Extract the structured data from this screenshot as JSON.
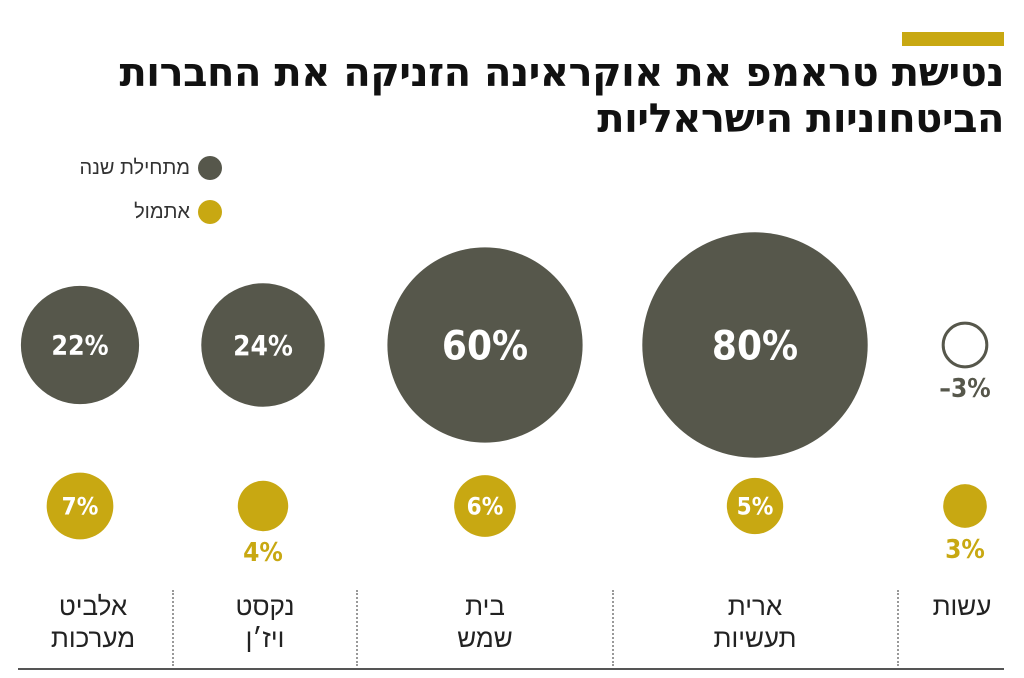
{
  "title": "נטישת טראמפ את אוקראינה הזניקה את החברות הביטחוניות הישראליות",
  "legend": [
    {
      "label": "מתחילת שנה",
      "color": "#56574b"
    },
    {
      "label": "אתמול",
      "color": "#c8a812"
    }
  ],
  "chart_data": {
    "type": "bubble",
    "title": "נטישת טראמפ את אוקראינה הזניקה את החברות הביטחוניות הישראליות",
    "categories": [
      "עשות",
      "ארית תעשיות",
      "בית שמש",
      "נקסט ויז׳ן",
      "אלביט מערכות"
    ],
    "series": [
      {
        "name": "מתחילת שנה",
        "values": [
          -3,
          80,
          60,
          24,
          22
        ],
        "labels": [
          "–3%",
          "80%",
          "60%",
          "24%",
          "22%"
        ]
      },
      {
        "name": "אתמול",
        "values": [
          3,
          5,
          6,
          4,
          7
        ],
        "labels": [
          "3%",
          "5%",
          "6%",
          "4%",
          "7%"
        ]
      }
    ]
  },
  "categories_display": [
    "עשות",
    "ארית\nתעשיות",
    "בית\nשמש",
    "נקסט\nויז׳ן",
    "אלביט\nמערכות"
  ]
}
